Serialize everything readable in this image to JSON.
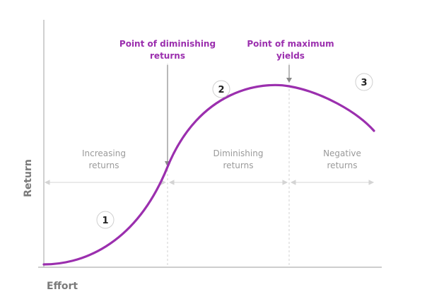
{
  "axes": {
    "x_label": "Effort",
    "y_label": "Return"
  },
  "callouts": {
    "diminishing": {
      "line1": "Point of diminishing",
      "line2": "returns"
    },
    "maximum": {
      "line1": "Point of maximum",
      "line2": "yields"
    }
  },
  "regions": {
    "increasing": {
      "line1": "Increasing",
      "line2": "returns"
    },
    "diminishing": {
      "line1": "Diminishing",
      "line2": "returns"
    },
    "negative": {
      "line1": "Negative",
      "line2": "returns"
    }
  },
  "markers": {
    "one": "1",
    "two": "2",
    "three": "3"
  },
  "colors": {
    "curve": "#9b2fae",
    "axis": "#bdbdbd",
    "guide": "#d0d0d0",
    "region_text": "#9a9a9a"
  }
}
